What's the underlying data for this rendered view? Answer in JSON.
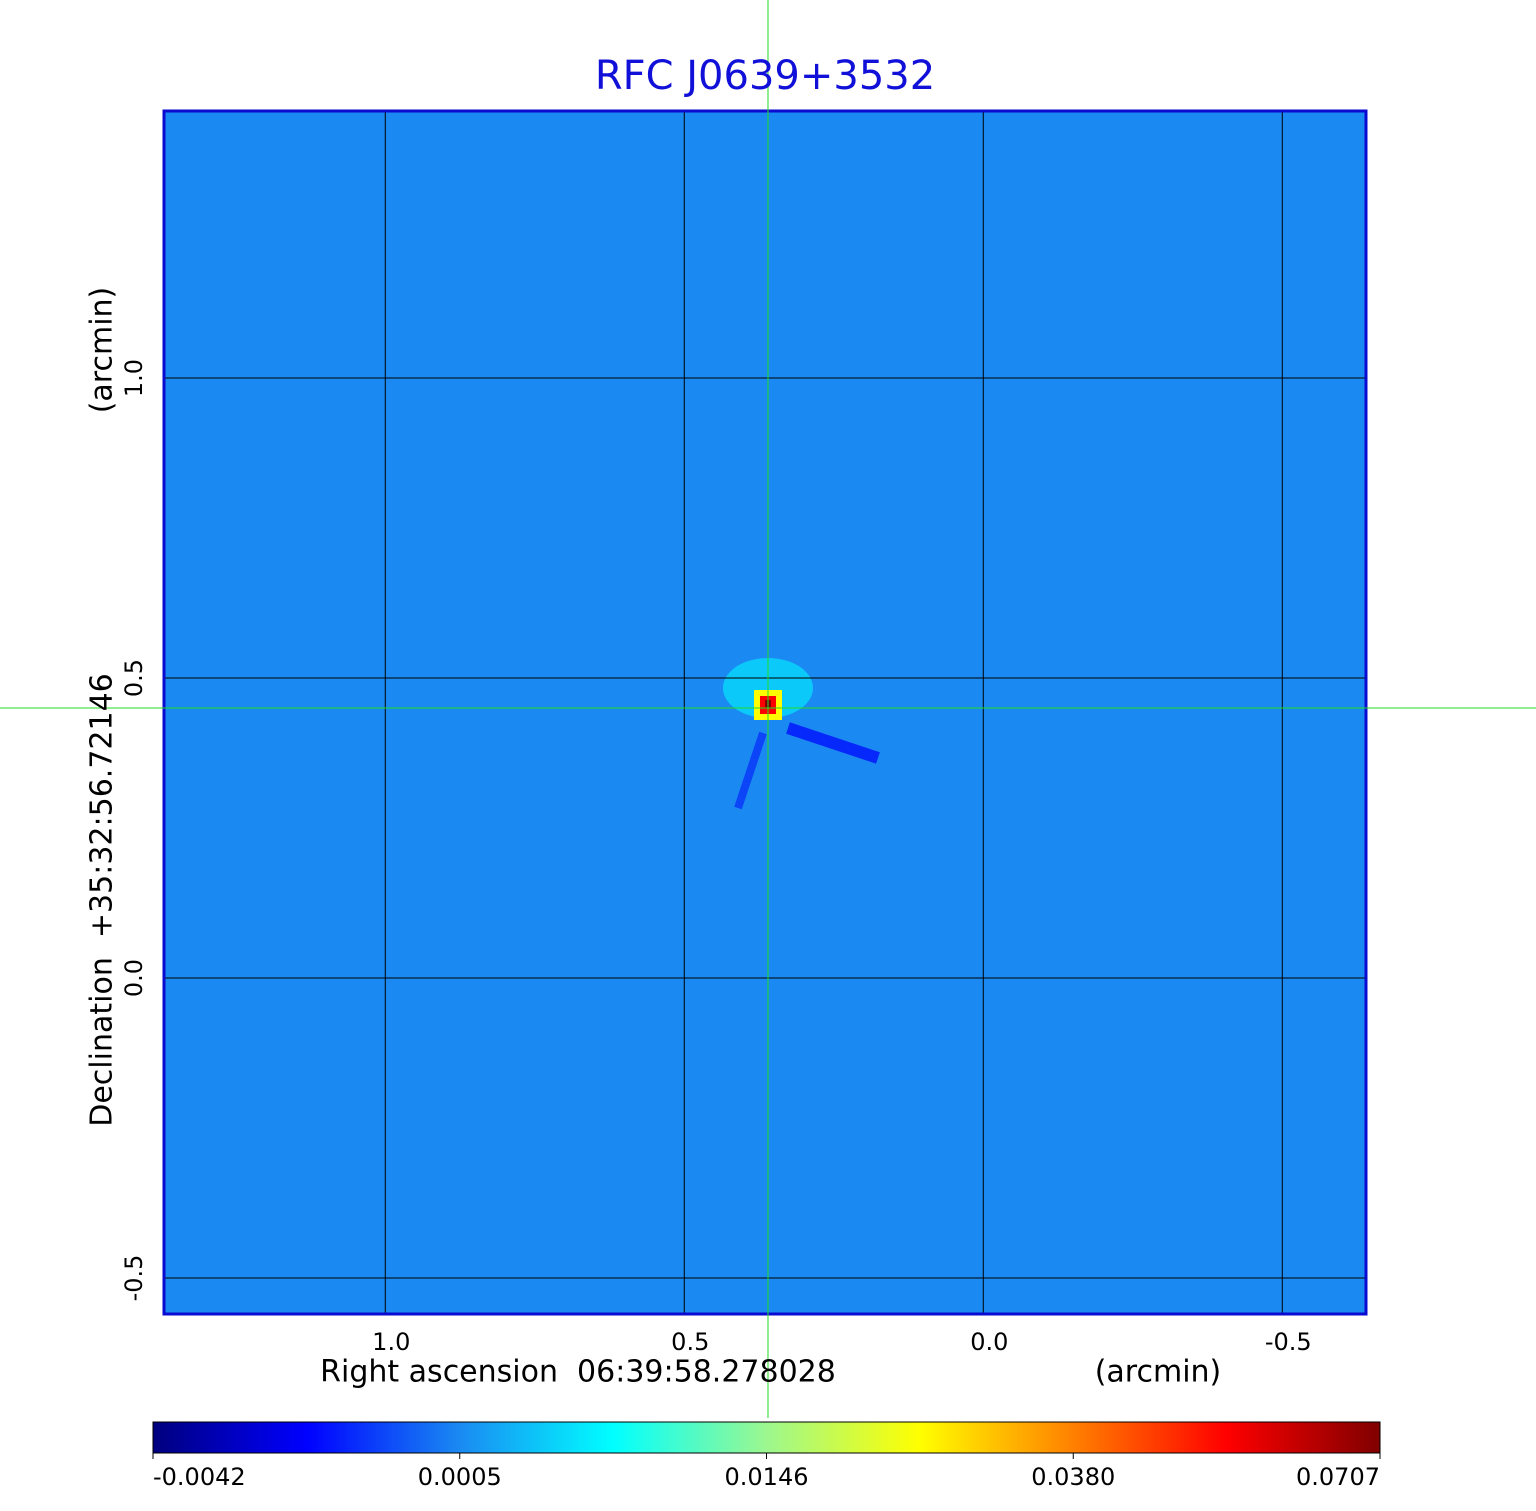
{
  "chart_data": {
    "type": "image",
    "title": "RFC J0639+3532",
    "xlabel": "Right ascension  06:39:58.278028",
    "xunit": "(arcmin)",
    "ylabel": "Declination  +35:32:56.72146",
    "yunit": "(arcmin)",
    "xlim": [
      1.37,
      -0.64
    ],
    "ylim": [
      -0.56,
      1.445
    ],
    "xticks": [
      {
        "value": 1,
        "label": "1.0"
      },
      0.5,
      {
        "value": 0,
        "label": "0.0"
      },
      -0.5
    ],
    "yticks": [
      -0.5,
      {
        "value": 0,
        "label": "0.0"
      },
      0.5,
      {
        "value": 1,
        "label": "1.0"
      }
    ],
    "grid": true,
    "background_color": "#1a8af2",
    "frame_color": "#0a0ad0",
    "crosshair": {
      "x": 0.36,
      "y": 0.45
    },
    "source_peak": 0.0707,
    "colorbar_ticks": [
      -0.0042,
      0.0005,
      0.0146,
      {
        "value": 0.038,
        "label": "0.0380"
      },
      0.0707
    ],
    "colormap": [
      "#00007f",
      "#0000ff",
      "#1a8af2",
      "#00ffff",
      "#9cf78f",
      "#ffff00",
      "#ff8000",
      "#ff0000",
      "#800000"
    ]
  }
}
